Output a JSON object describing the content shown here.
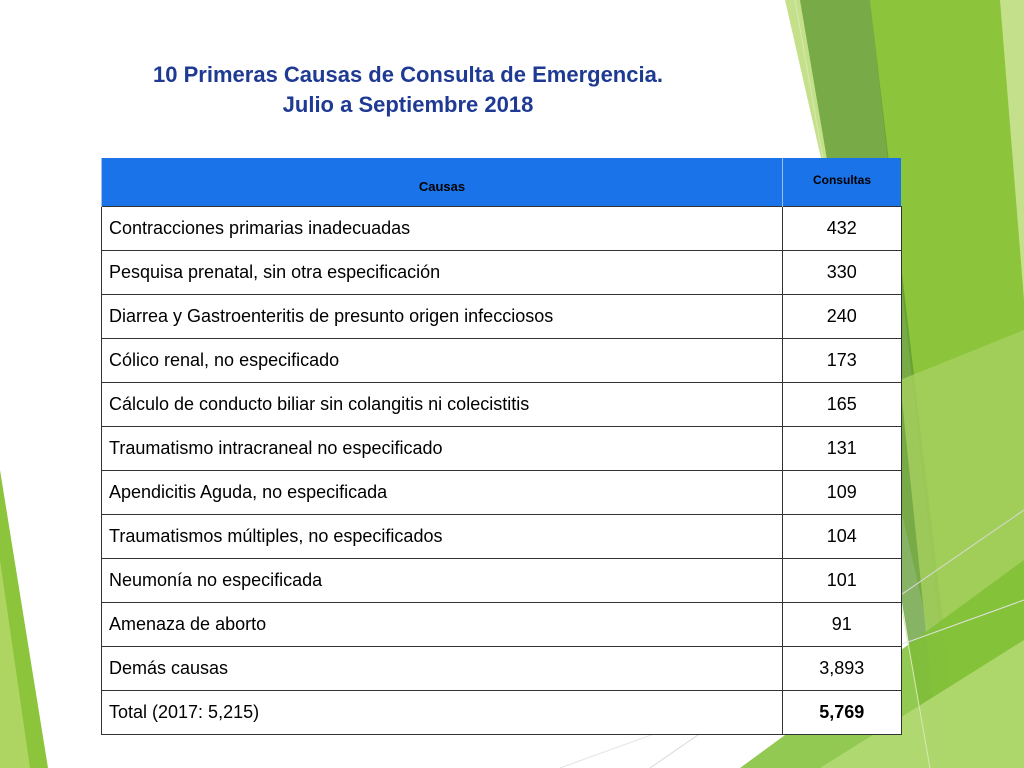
{
  "title": {
    "line1": "10 Primeras Causas de  Consulta de Emergencia.",
    "line2": "Julio a Septiembre 2018"
  },
  "colors": {
    "title": "#1f3a93",
    "header_bg": "#1a73e8",
    "accent_green_light": "#b6d96a",
    "accent_green": "#8cc43c",
    "accent_green_dark": "#5e9a30"
  },
  "table": {
    "headers": {
      "cause": "Causas",
      "count": "Consultas"
    },
    "rows": [
      {
        "cause": "Contracciones primarias inadecuadas",
        "count": "432"
      },
      {
        "cause": "Pesquisa prenatal, sin otra especificación",
        "count": "330"
      },
      {
        "cause": "Diarrea y Gastroenteritis de presunto origen infecciosos",
        "count": "240"
      },
      {
        "cause": "Cólico renal, no especificado",
        "count": "173"
      },
      {
        "cause": "Cálculo de conducto biliar sin colangitis ni colecistitis",
        "count": "165"
      },
      {
        "cause": " Traumatismo intracraneal no especificado",
        "count": "131"
      },
      {
        "cause": "Apendicitis Aguda, no especificada",
        "count": "109"
      },
      {
        "cause": "Traumatismos múltiples, no especificados",
        "count": "104"
      },
      {
        "cause": "Neumonía no especificada",
        "count": "101"
      },
      {
        "cause": "Amenaza de aborto",
        "count": "91"
      },
      {
        "cause": "Demás causas",
        "count": "3,893"
      }
    ],
    "total": {
      "cause": "Total (2017: 5,215)",
      "count": "5,769"
    }
  }
}
